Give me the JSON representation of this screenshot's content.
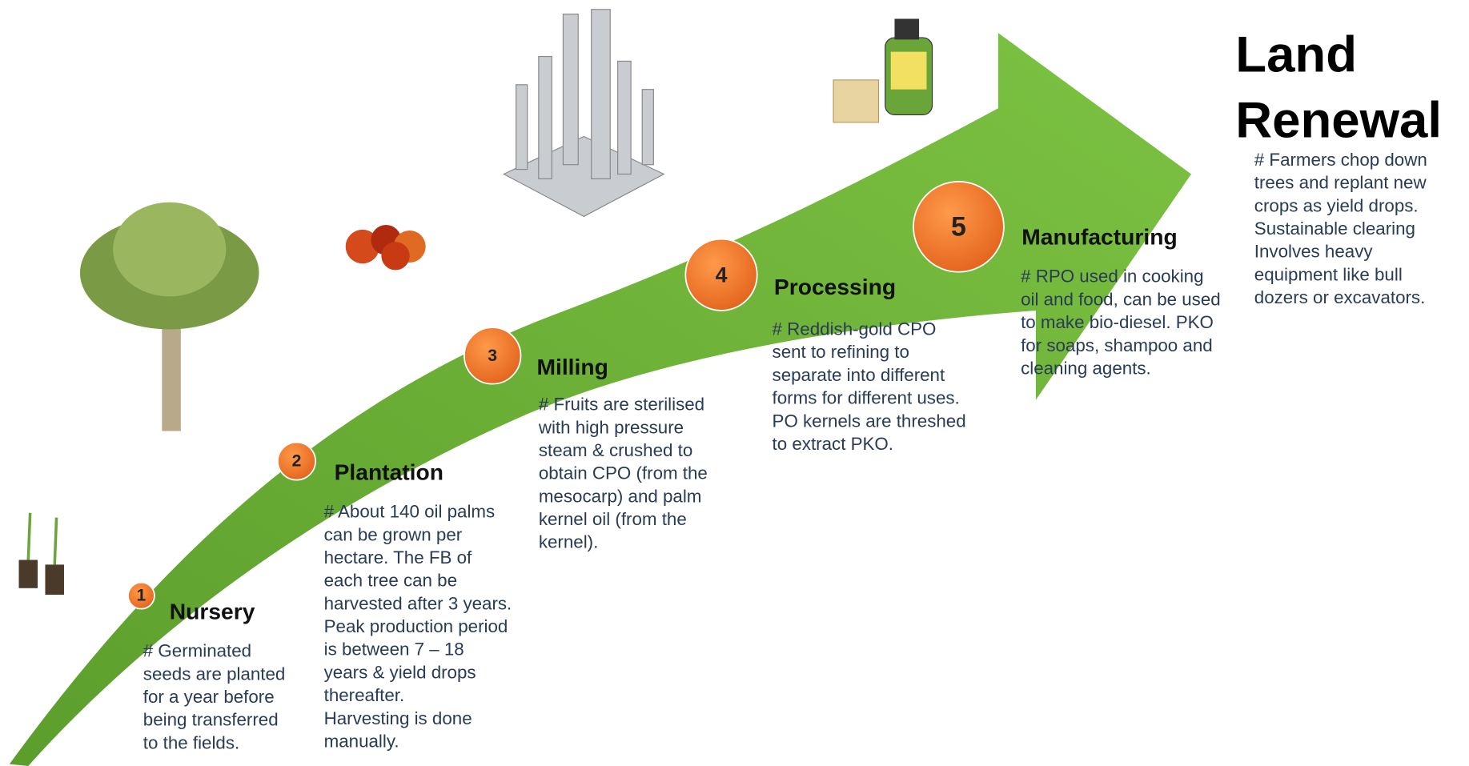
{
  "steps": [
    {
      "number": "1",
      "title": "Nursery",
      "text": [
        "# Germinated",
        "seeds are planted",
        "for a year before",
        "being transferred",
        "to the fields."
      ]
    },
    {
      "number": "2",
      "title": "Plantation",
      "text": [
        "# About 140 oil palms",
        "can be grown per",
        "hectare. The FB of",
        "each tree can be",
        "harvested after 3 years.",
        "Peak production period",
        "is between 7 – 18",
        "years & yield drops",
        "thereafter.",
        "Harvesting is done",
        "manually."
      ]
    },
    {
      "number": "3",
      "title": "Milling",
      "text": [
        "# Fruits are sterilised",
        "with high pressure",
        "steam & crushed to",
        "obtain CPO (from the",
        "mesocarp) and palm",
        "kernel oil (from the",
        "kernel)."
      ]
    },
    {
      "number": "4",
      "title": "Processing",
      "text": [
        "# Reddish-gold CPO",
        "sent to refining to",
        "separate into different",
        "forms for different uses.",
        "PO kernels are threshed",
        "to extract PKO."
      ]
    },
    {
      "number": "5",
      "title": "Manufacturing",
      "text": [
        "# RPO used in cooking",
        "oil and food, can be used",
        "to make bio-diesel. PKO",
        "for soaps, shampoo and",
        "cleaning agents."
      ]
    }
  ],
  "final": {
    "title": [
      "Land",
      "Renewal"
    ],
    "text": [
      "# Farmers chop down",
      "trees and replant new",
      "crops as yield drops.",
      "Sustainable clearing",
      "Involves heavy",
      "equipment like bull",
      "dozers or excavators."
    ]
  }
}
